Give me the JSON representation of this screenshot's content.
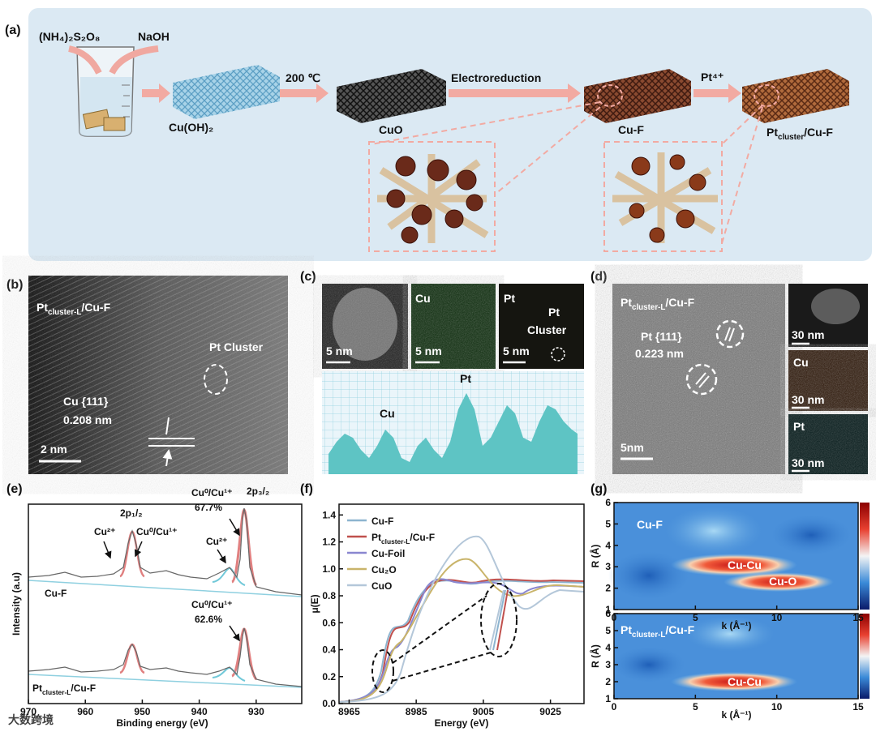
{
  "panel_a": {
    "label": "(a)",
    "reagents": [
      "(NH₄)₂S₂O₈",
      "NaOH"
    ],
    "cuoh2": "Cu(OH)₂",
    "step_1": "200 ℃",
    "cuo": "CuO",
    "step_2": "Electroreduction",
    "cuf": "Cu-F",
    "step_3": "Pt⁴⁺",
    "product": {
      "base": "Pt",
      "sub": "cluster",
      "rest": "/Cu-F"
    }
  },
  "panel_b": {
    "label": "(b)",
    "sample": {
      "base": "Pt",
      "sub": "cluster-L",
      "rest": "/Cu-F"
    },
    "cluster": "Pt Cluster",
    "plane": "Cu {111}",
    "spacing": "0.208 nm",
    "scale": "2 nm"
  },
  "panel_c": {
    "label": "(c)",
    "maps": [
      {
        "scale": "5 nm"
      },
      {
        "element": "Cu",
        "scale": "5 nm"
      },
      {
        "element": "Pt",
        "scale": "5 nm"
      }
    ],
    "cluster": [
      "Pt",
      "Cluster"
    ],
    "profile": [
      "Cu",
      "Pt"
    ]
  },
  "panel_d": {
    "label": "(d)",
    "sample": {
      "base": "Pt",
      "sub": "cluster-L",
      "rest": "/Cu-F"
    },
    "plane": "Pt {111}",
    "spacing": "0.223 nm",
    "scale": "5nm",
    "maps": [
      {
        "scale": "30 nm"
      },
      {
        "element": "Cu",
        "scale": "30 nm"
      },
      {
        "element": "Pt",
        "scale": "30 nm"
      }
    ]
  },
  "panel_e": {
    "label": "(e)",
    "xlabel": "Binding energy (eV)",
    "ylabel": "Intensity (a.u)",
    "xlim": [
      970,
      922
    ],
    "xticks": [
      970,
      960,
      950,
      940,
      930
    ],
    "annotations": [
      "2p₁/₂",
      "2p₃/₂",
      "Cu²⁺",
      "Cu⁰/Cu¹⁺",
      "Cu⁰/Cu¹⁺",
      "67.7%",
      "Cu²⁺",
      "Cu⁰/Cu¹⁺",
      "62.6%"
    ],
    "spectra": [
      {
        "name": "Cu-F"
      },
      {
        "name": {
          "base": "Pt",
          "sub": "cluster-L",
          "rest": "/Cu-F"
        }
      }
    ]
  },
  "panel_f": {
    "label": "(f)",
    "xlabel": "Energy (eV)",
    "ylabel": "μ(E)",
    "xlim": [
      8962,
      9035
    ],
    "ylim": [
      0,
      1.48
    ],
    "xticks": [
      8965,
      8985,
      9005,
      9025
    ],
    "yticks": [
      {
        "value": 0,
        "label": "0.0"
      },
      0.2,
      0.4,
      0.6,
      0.8,
      {
        "value": 1,
        "label": "1.0"
      },
      1.2,
      1.4
    ],
    "series": [
      {
        "name": "Cu-F",
        "color": "#8db4cf"
      },
      {
        "name": {
          "base": "Pt",
          "sub": "cluster-L",
          "rest": "/Cu-F"
        },
        "color": "#c0504d"
      },
      {
        "name": "Cu-Foil",
        "color": "#8a87d0"
      },
      {
        "name": "Cu₂O",
        "color": "#c9b46a"
      },
      {
        "name": "CuO",
        "color": "#b4c7d9"
      }
    ]
  },
  "panel_g": {
    "label": "(g)",
    "xlabel": "k (Å⁻¹)",
    "ylabel": "R (Å)",
    "xlim": [
      0,
      15
    ],
    "ylim": [
      1,
      6
    ],
    "xticks": [
      0,
      5,
      10,
      15
    ],
    "yticks": [
      1,
      2,
      3,
      4,
      5,
      6
    ],
    "maps": [
      {
        "title": "Cu-F",
        "paths": [
          "Cu-Cu",
          "Cu-O"
        ]
      },
      {
        "title": {
          "base": "Pt",
          "sub": "cluster-L",
          "rest": "/Cu-F"
        },
        "paths": [
          "Cu-Cu"
        ]
      }
    ]
  },
  "watermark": "大数跨境"
}
